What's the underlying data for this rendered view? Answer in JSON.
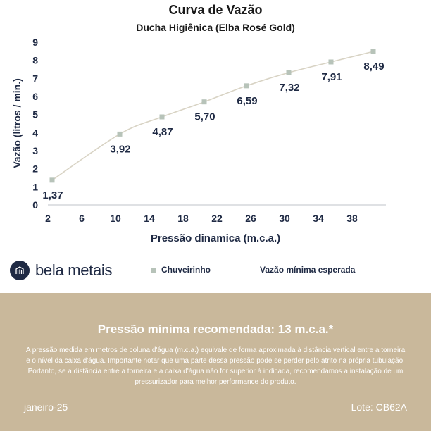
{
  "brand": {
    "name": "bela metais",
    "logo_icon": "building-icon"
  },
  "chart_data": {
    "type": "line",
    "title": "Curva de Vazão",
    "subtitle": "Ducha Higiênica (Elba Rosé Gold)",
    "xlabel": "Pressão dinamica (m.c.a.)",
    "ylabel": "Vazão (litros / min.)",
    "xlim": [
      2,
      42
    ],
    "ylim": [
      0,
      9
    ],
    "xticks": [
      "2",
      "6",
      "10",
      "14",
      "18",
      "22",
      "26",
      "30",
      "34",
      "38"
    ],
    "yticks": [
      "0",
      "1",
      "2",
      "3",
      "4",
      "5",
      "6",
      "7",
      "8",
      "9"
    ],
    "grid": false,
    "legend_position": "bottom",
    "series": [
      {
        "name": "Chuveirinho",
        "style": "markers",
        "color": "#b7c3b9",
        "x": [
          2.5,
          10.5,
          15.5,
          20.5,
          25.5,
          30.5,
          35.5,
          40.5
        ],
        "y": [
          1.37,
          3.92,
          4.87,
          5.7,
          6.59,
          7.32,
          7.91,
          8.49
        ],
        "labels": [
          "1,37",
          "3,92",
          "4,87",
          "5,70",
          "6,59",
          "7,32",
          "7,91",
          "8,49"
        ]
      },
      {
        "name": "Vazão mínima esperada",
        "style": "line",
        "color": "#d8d3c4",
        "x": [
          2.5,
          10.5,
          15.5,
          20.5,
          25.5,
          30.5,
          35.5,
          40.5
        ],
        "y": [
          1.37,
          3.92,
          4.87,
          5.7,
          6.59,
          7.32,
          7.91,
          8.49
        ]
      }
    ]
  },
  "footer": {
    "title": "Pressão mínima recomendada: 13 m.c.a.*",
    "note": "A pressão medida em metros de coluna d'água (m.c.a.) equivale de forma aproximada à distância vertical entre a torneira e o nível da caixa d'água. Importante notar que uma parte dessa pressão pode se perder pelo atrito na própria tubulação. Portanto, se a distância entre a torneira e a caixa d'água não for superior à indicada, recomendamos a instalação de um pressurizador para melhor performance do produto.",
    "date": "janeiro-25",
    "lot": "Lote: CB62A"
  },
  "colors": {
    "text": "#1f2a44",
    "footer_bg": "#c9b89b",
    "axis": "#bfc3c8"
  }
}
